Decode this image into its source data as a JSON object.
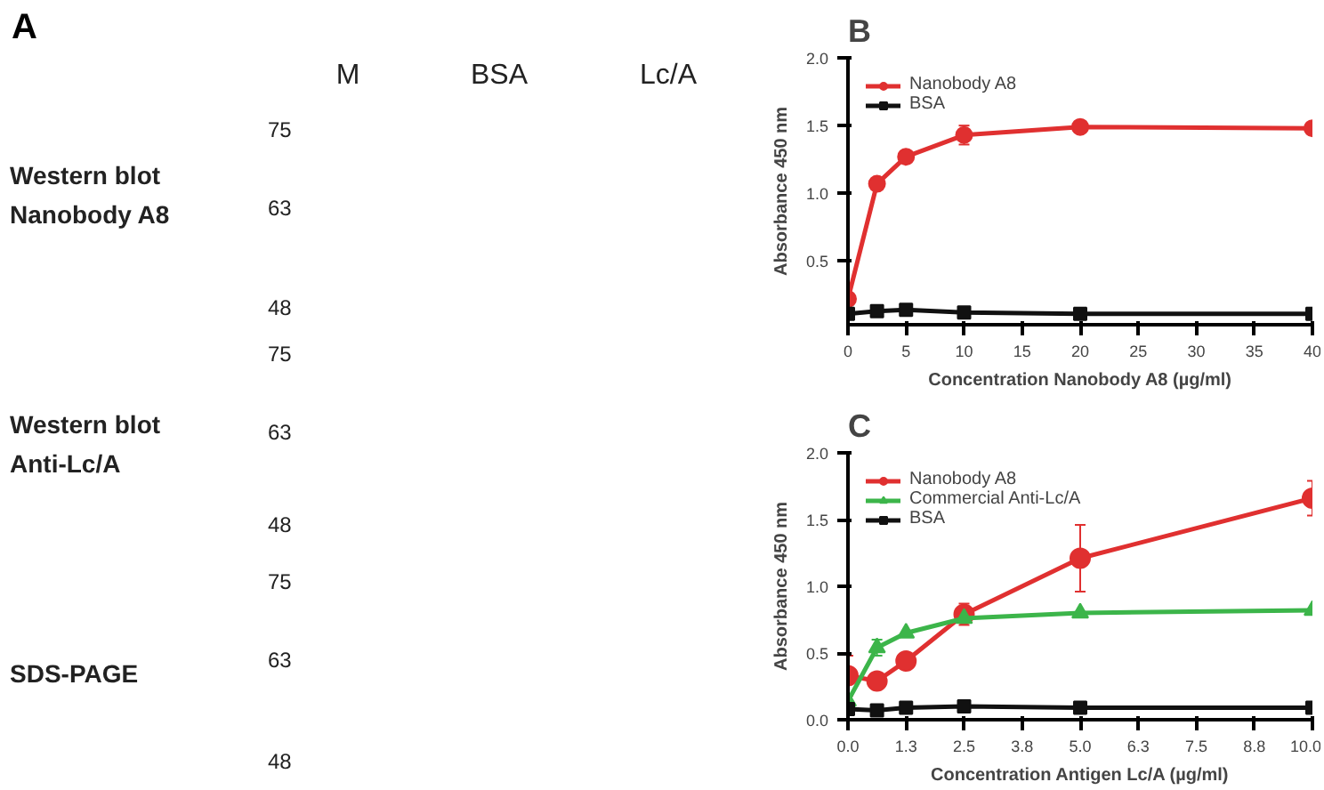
{
  "chart_data": [
    {
      "type": "other",
      "title": "A",
      "annotations": [
        "M",
        "BSA",
        "Lc/A",
        "Western blot",
        "Nanobody A8",
        "Western blot",
        "Anti-Lc/A",
        "SDS-PAGE",
        "75",
        "63",
        "48",
        "75",
        "63",
        "48",
        "75",
        "63",
        "48"
      ]
    },
    {
      "type": "line",
      "title": "B",
      "xlabel": "Concentration Nanobody A8 (µg/ml)",
      "ylabel": "Absorbance 450 nm",
      "x": [
        0,
        2.5,
        5,
        10,
        20,
        40
      ],
      "series": [
        {
          "name": "Nanobody A8",
          "color": "#e03030",
          "marker": "circle",
          "values": [
            0.22,
            1.07,
            1.27,
            1.43,
            1.49,
            1.48
          ],
          "errors": [
            null,
            null,
            null,
            0.07,
            null,
            null
          ]
        },
        {
          "name": "BSA",
          "color": "#111111",
          "marker": "square",
          "values": [
            0.11,
            0.13,
            0.14,
            0.12,
            0.11,
            0.11
          ]
        }
      ],
      "xlim": [
        0,
        40
      ],
      "xticks": [
        0,
        5,
        10,
        15,
        20,
        25,
        30,
        35,
        40
      ],
      "ylim": [
        0.03,
        2.0
      ],
      "yticks": [
        {
          "value": 0.5,
          "label": "0.5"
        },
        {
          "value": 1.0,
          "label": "1.0"
        },
        {
          "value": 1.5,
          "label": "1.5"
        },
        {
          "value": 2.0,
          "label": "2.0"
        }
      ],
      "grid": false,
      "legend": "top left"
    },
    {
      "type": "line",
      "title": "C",
      "xlabel": "Concentration Antigen Lc/A (µg/ml)",
      "ylabel": "Absorbance 450 nm",
      "x": [
        0,
        0.625,
        1.25,
        2.5,
        5,
        10
      ],
      "series": [
        {
          "name": "Nanobody A8",
          "color": "#e03030",
          "marker": "circle",
          "values": [
            0.33,
            0.29,
            0.44,
            0.79,
            1.21,
            1.66
          ],
          "errors": [
            0.15,
            0.05,
            null,
            0.08,
            0.25,
            0.13
          ]
        },
        {
          "name": "Commercial Anti-Lc/A",
          "color": "#3cb54a",
          "marker": "triangle",
          "values": [
            0.14,
            0.54,
            0.65,
            0.76,
            0.8,
            0.82
          ],
          "errors": [
            null,
            0.06,
            null,
            null,
            null,
            null
          ]
        },
        {
          "name": "BSA",
          "color": "#111111",
          "marker": "square",
          "values": [
            0.08,
            0.07,
            0.09,
            0.1,
            0.09,
            0.09
          ]
        }
      ],
      "xlim": [
        0,
        10
      ],
      "xticks": [
        {
          "value": 0,
          "label": "0.0"
        },
        {
          "value": 1.25,
          "label": "1.3"
        },
        {
          "value": 2.5,
          "label": "2.5"
        },
        {
          "value": 3.75,
          "label": "3.8"
        },
        {
          "value": 5,
          "label": "5.0"
        },
        {
          "value": 6.25,
          "label": "6.3"
        },
        {
          "value": 7.5,
          "label": "7.5"
        },
        {
          "value": 8.75,
          "label": "8.8"
        },
        {
          "value": 10,
          "label": "10.0"
        }
      ],
      "ylim": [
        0,
        2.0
      ],
      "yticks": [
        {
          "value": 0,
          "label": "0.0"
        },
        0.5,
        {
          "value": 1.0,
          "label": "1.0"
        },
        1.5,
        {
          "value": 2.0,
          "label": "2.0"
        }
      ],
      "grid": false,
      "legend": "top left"
    }
  ]
}
